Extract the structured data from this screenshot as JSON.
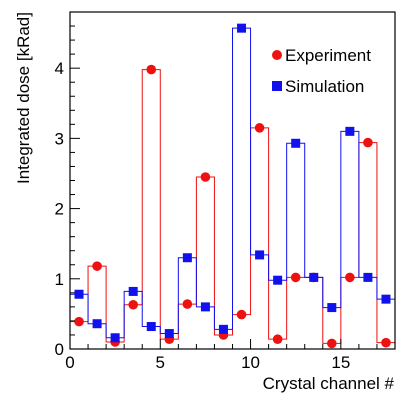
{
  "chart_data": {
    "type": "step",
    "xlabel": "Crystal channel #",
    "ylabel": "Integrated dose [kRad]",
    "xlim": [
      0,
      18
    ],
    "ylim": [
      0,
      4.8
    ],
    "x_ticks": [
      0,
      5,
      10,
      15
    ],
    "y_ticks": [
      0,
      1,
      2,
      3,
      4
    ],
    "grid": false,
    "legend_position": "top-right",
    "channels": [
      0.5,
      1.5,
      2.5,
      3.5,
      4.5,
      5.5,
      6.5,
      7.5,
      8.5,
      9.5,
      10.5,
      11.5,
      12.5,
      13.5,
      14.5,
      15.5,
      16.5,
      17.5
    ],
    "series": [
      {
        "name": "Experiment",
        "color": "#ee1111",
        "marker": "circle",
        "values": [
          0.39,
          1.18,
          0.1,
          0.63,
          3.98,
          0.14,
          0.64,
          2.45,
          0.2,
          0.49,
          3.15,
          0.14,
          1.02,
          1.02,
          0.08,
          1.02,
          2.94,
          0.09
        ]
      },
      {
        "name": "Simulation",
        "color": "#1111ee",
        "marker": "square",
        "values": [
          0.78,
          0.36,
          0.16,
          0.82,
          0.32,
          0.22,
          1.3,
          0.6,
          0.28,
          4.57,
          1.34,
          0.98,
          2.93,
          1.02,
          0.59,
          3.1,
          1.02,
          0.71
        ]
      }
    ]
  }
}
